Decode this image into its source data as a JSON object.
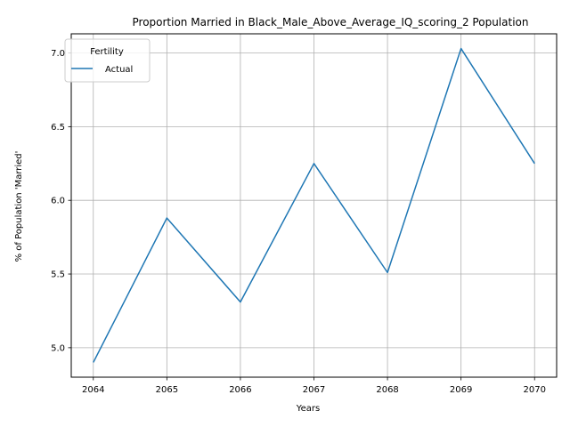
{
  "chart_data": {
    "type": "line",
    "title": "Proportion Married in Black_Male_Above_Average_IQ_scoring_2 Population",
    "xlabel": "Years",
    "ylabel": "% of Population 'Married'",
    "x": [
      2064,
      2065,
      2066,
      2067,
      2068,
      2069,
      2070
    ],
    "series": [
      {
        "name": "Actual",
        "values": [
          4.9,
          5.88,
          5.31,
          6.25,
          5.51,
          7.03,
          6.25
        ],
        "color": "#1f77b4"
      }
    ],
    "xticks": [
      "2064",
      "2065",
      "2066",
      "2067",
      "2068",
      "2069",
      "2070"
    ],
    "yticks": [
      "5.0",
      "5.5",
      "6.0",
      "6.5",
      "7.0"
    ],
    "ylim": [
      4.8,
      7.13
    ],
    "xlim": [
      2063.7,
      2070.3
    ],
    "grid": true,
    "legend": {
      "title": "Fertility",
      "placement": "upper-left"
    }
  }
}
